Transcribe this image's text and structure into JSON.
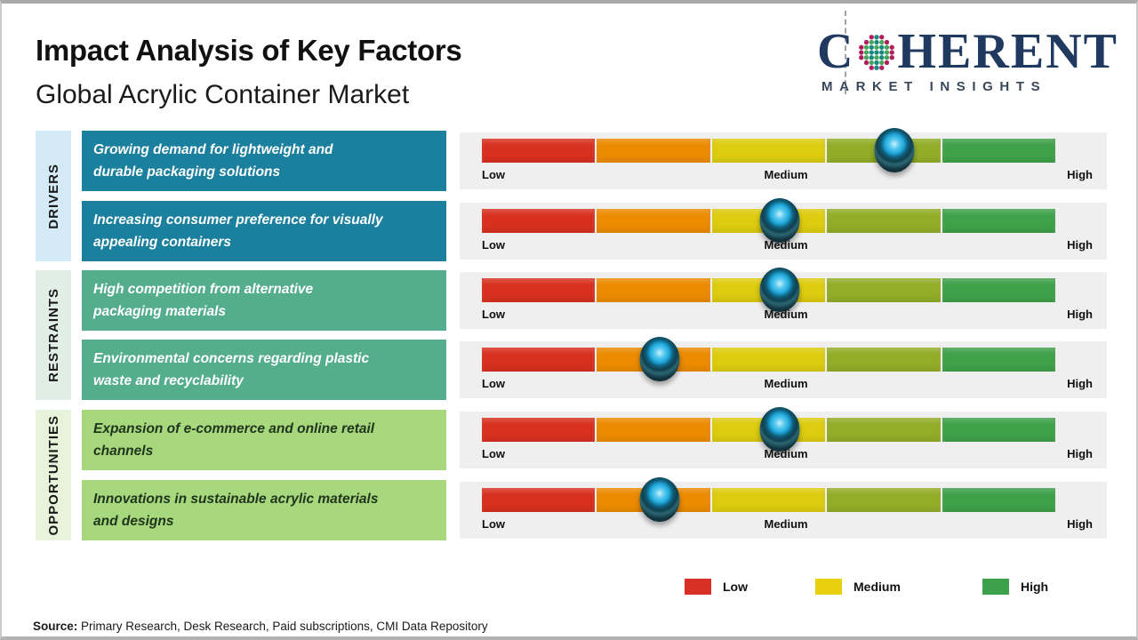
{
  "header": {
    "title": "Impact Analysis of Key Factors",
    "subtitle": "Global Acrylic Container Market"
  },
  "logo": {
    "name": "Coherent Market Insights",
    "word_c": "C",
    "word_rest": "HERENT",
    "tagline": "MARKET INSIGHTS",
    "navy": "#20395f"
  },
  "groups": [
    {
      "label": "DRIVERS",
      "tab_bg": "#d4eaf6",
      "box_bg": "#1b7f9e",
      "box_text": "#ffffff"
    },
    {
      "label": "RESTRAINTS",
      "tab_bg": "#e1eee8",
      "box_bg": "#54ad8d",
      "box_text": "#ffffff"
    },
    {
      "label": "OPPORTUNITIES",
      "tab_bg": "#e7f3da",
      "box_bg": "#a8d87d",
      "box_text": "#20351d"
    }
  ],
  "rows": [
    {
      "group": 0,
      "text": "Growing demand for lightweight and\ndurable packaging solutions",
      "marker_pct": 72
    },
    {
      "group": 0,
      "text": "Increasing consumer preference for visually\nappealing containers",
      "marker_pct": 52
    },
    {
      "group": 1,
      "text": "High competition from alternative\npackaging materials",
      "marker_pct": 52
    },
    {
      "group": 1,
      "text": "Environmental concerns regarding plastic\nwaste and recyclability",
      "marker_pct": 31
    },
    {
      "group": 2,
      "text": "Expansion of e-commerce and online retail\nchannels",
      "marker_pct": 52
    },
    {
      "group": 2,
      "text": "Innovations in sustainable acrylic materials\nand designs",
      "marker_pct": 31
    }
  ],
  "scale": {
    "low": "Low",
    "medium": "Medium",
    "high": "High"
  },
  "gauge": {
    "segment_colors": [
      "#d8301f",
      "#ec8b00",
      "#ddcc10",
      "#93ad28",
      "#3fa14a"
    ],
    "panel_bg": "#efefef",
    "marker_center_color": "#29b7ea",
    "marker_ring_color": "#123741"
  },
  "legend": [
    {
      "label": "Low",
      "color": "#d93025"
    },
    {
      "label": "Medium",
      "color": "#e8d00e"
    },
    {
      "label": "High",
      "color": "#3da14b"
    }
  ],
  "source": {
    "label": "Source:",
    "text": " Primary Research, Desk Research, Paid subscriptions, CMI Data Repository"
  },
  "chart_data": {
    "type": "bar",
    "title": "Impact Analysis of Key Factors",
    "subtitle": "Global Acrylic Container Market",
    "scale_ticks": [
      "Low",
      "Medium",
      "High"
    ],
    "groups": [
      "Drivers",
      "Drivers",
      "Restraints",
      "Restraints",
      "Opportunities",
      "Opportunities"
    ],
    "categories": [
      "Growing demand for lightweight and durable packaging solutions",
      "Increasing consumer preference for visually appealing containers",
      "High competition from alternative packaging materials",
      "Environmental concerns regarding plastic waste and recyclability",
      "Expansion of e-commerce and online retail channels",
      "Innovations in sustainable acrylic materials and designs"
    ],
    "values_pct_of_scale": [
      72,
      52,
      52,
      31,
      52,
      31
    ],
    "impact_levels": [
      "Medium-High",
      "Medium",
      "Medium",
      "Low-Medium",
      "Medium",
      "Low-Medium"
    ],
    "xlim": [
      "Low",
      "High"
    ],
    "legend": [
      "Low",
      "Medium",
      "High"
    ],
    "legend_position": "bottom",
    "grid": false
  }
}
